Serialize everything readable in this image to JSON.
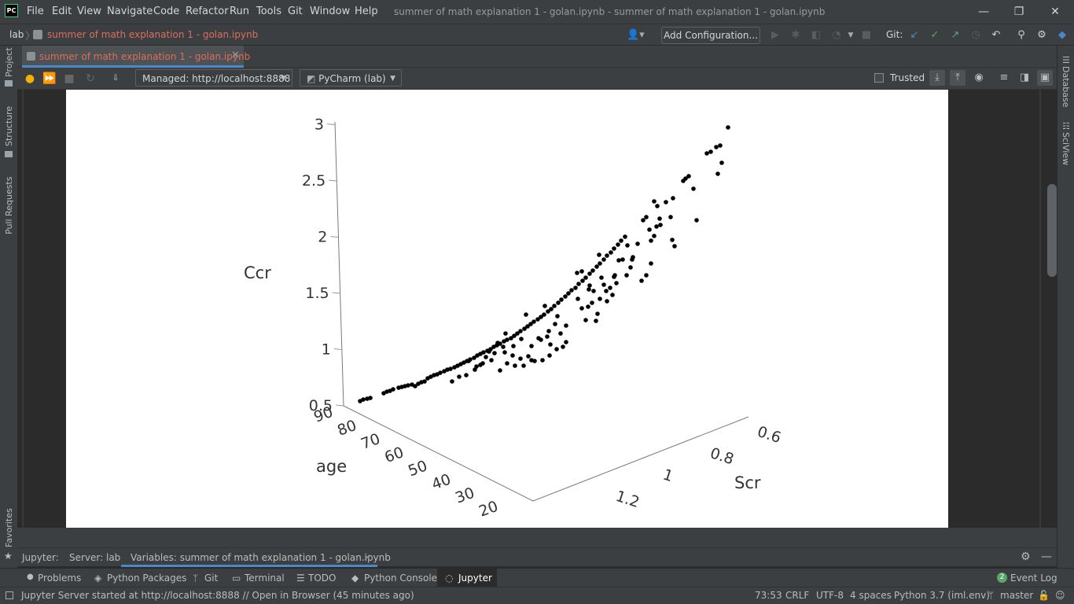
{
  "titlebar": {
    "logo_text": "PC",
    "menu": [
      "File",
      "Edit",
      "View",
      "Navigate",
      "Code",
      "Refactor",
      "Run",
      "Tools",
      "Git",
      "Window",
      "Help"
    ],
    "window_title": "summer of math explanation 1 - golan.ipynb - summer of math explanation 1 - golan.ipynb",
    "controls": {
      "minimize": "—",
      "restore": "❐",
      "close": "✕"
    }
  },
  "navbar": {
    "project": "lab",
    "separator": "〉",
    "file": "summer of math explanation 1 - golan.ipynb",
    "add_configuration": "Add Configuration...",
    "git_label": "Git:"
  },
  "left_strip": {
    "project": "Project",
    "structure": "Structure",
    "pull_requests": "Pull Requests",
    "favorites": "Favorites"
  },
  "right_strip": {
    "database": "Database",
    "sciview": "SciView"
  },
  "editor_tab": {
    "label": "summer of math explanation 1 - golan.ipynb",
    "close": "✕"
  },
  "notebook_toolbar": {
    "server": "Managed: http://localhost:8888",
    "kernel": "PyCharm (lab)",
    "trusted": "Trusted",
    "trusted_checked": false
  },
  "chart_data": {
    "type": "scatter3d",
    "title": "",
    "axes": {
      "z": {
        "label": "Ccr",
        "ticks": [
          "0.5",
          "1",
          "1.5",
          "2",
          "2.5",
          "3"
        ]
      },
      "y": {
        "label": "age",
        "ticks": [
          "90",
          "80",
          "70",
          "60",
          "50",
          "40",
          "30",
          "20"
        ]
      },
      "x": {
        "label": "Scr",
        "ticks": [
          "0.6",
          "0.8",
          "1",
          "1.2"
        ]
      }
    },
    "marker_color": "#000000",
    "points_screen_estimate": [
      [
        458,
        510
      ],
      [
        462,
        508
      ],
      [
        467,
        507
      ],
      [
        471,
        506
      ],
      [
        488,
        500
      ],
      [
        492,
        498
      ],
      [
        496,
        497
      ],
      [
        500,
        495
      ],
      [
        507,
        493
      ],
      [
        511,
        492
      ],
      [
        515,
        491
      ],
      [
        519,
        490
      ],
      [
        524,
        489
      ],
      [
        528,
        491
      ],
      [
        532,
        488
      ],
      [
        536,
        486
      ],
      [
        540,
        485
      ],
      [
        544,
        481
      ],
      [
        548,
        479
      ],
      [
        552,
        477
      ],
      [
        556,
        476
      ],
      [
        560,
        474
      ],
      [
        565,
        472
      ],
      [
        569,
        470
      ],
      [
        573,
        469
      ],
      [
        578,
        467
      ],
      [
        582,
        465
      ],
      [
        586,
        463
      ],
      [
        590,
        461
      ],
      [
        594,
        459
      ],
      [
        598,
        457
      ],
      [
        603,
        455
      ],
      [
        607,
        452
      ],
      [
        611,
        450
      ],
      [
        615,
        448
      ],
      [
        620,
        446
      ],
      [
        624,
        444
      ],
      [
        628,
        441
      ],
      [
        632,
        439
      ],
      [
        636,
        437
      ],
      [
        641,
        434
      ],
      [
        645,
        432
      ],
      [
        650,
        430
      ],
      [
        654,
        427
      ],
      [
        658,
        424
      ],
      [
        662,
        421
      ],
      [
        667,
        418
      ],
      [
        671,
        415
      ],
      [
        675,
        412
      ],
      [
        679,
        409
      ],
      [
        684,
        406
      ],
      [
        688,
        403
      ],
      [
        692,
        400
      ],
      [
        697,
        396
      ],
      [
        701,
        393
      ],
      [
        705,
        389
      ],
      [
        710,
        385
      ],
      [
        714,
        381
      ],
      [
        719,
        377
      ],
      [
        723,
        373
      ],
      [
        727,
        369
      ],
      [
        732,
        366
      ],
      [
        736,
        361
      ],
      [
        741,
        357
      ],
      [
        745,
        353
      ],
      [
        750,
        348
      ],
      [
        754,
        344
      ],
      [
        759,
        339
      ],
      [
        763,
        335
      ],
      [
        768,
        330
      ],
      [
        772,
        325
      ],
      [
        777,
        321
      ],
      [
        781,
        316
      ],
      [
        786,
        311
      ],
      [
        790,
        306
      ],
      [
        795,
        301
      ],
      [
        818,
        280
      ],
      [
        822,
        276
      ],
      [
        832,
        256
      ],
      [
        836,
        262
      ],
      [
        847,
        257
      ],
      [
        853,
        276
      ],
      [
        856,
        252
      ],
      [
        869,
        230
      ],
      [
        872,
        227
      ],
      [
        876,
        224
      ],
      [
        882,
        240
      ],
      [
        886,
        280
      ],
      [
        899,
        195
      ],
      [
        904,
        193
      ],
      [
        911,
        187
      ],
      [
        916,
        185
      ],
      [
        918,
        207
      ],
      [
        926,
        162
      ],
      [
        913,
        221
      ],
      [
        575,
        485
      ],
      [
        584,
        479
      ],
      [
        593,
        477
      ],
      [
        604,
        470
      ],
      [
        614,
        462
      ],
      [
        625,
        458
      ],
      [
        636,
        471
      ],
      [
        645,
        462
      ],
      [
        655,
        465
      ],
      [
        666,
        465
      ],
      [
        676,
        458
      ],
      [
        690,
        458
      ],
      [
        699,
        452
      ],
      [
        708,
        444
      ],
      [
        716,
        441
      ],
      [
        720,
        435
      ],
      [
        652,
        452
      ],
      [
        662,
        456
      ],
      [
        672,
        453
      ],
      [
        685,
        430
      ],
      [
        696,
        428
      ],
      [
        709,
        402
      ],
      [
        720,
        414
      ],
      [
        745,
        407
      ],
      [
        758,
        408
      ],
      [
        763,
        380
      ],
      [
        772,
        383
      ],
      [
        784,
        360
      ],
      [
        797,
        350
      ],
      [
        802,
        340
      ],
      [
        816,
        357
      ],
      [
        822,
        350
      ],
      [
        828,
        335
      ],
      [
        828,
        306
      ],
      [
        832,
        300
      ],
      [
        858,
        313
      ],
      [
        855,
        305
      ],
      [
        835,
        288
      ],
      [
        839,
        278
      ],
      [
        748,
        390
      ],
      [
        760,
        399
      ],
      [
        771,
        370
      ],
      [
        781,
        352
      ],
      [
        792,
        330
      ],
      [
        805,
        327
      ],
      [
        811,
        310
      ],
      [
        826,
        292
      ],
      [
        840,
        286
      ],
      [
        735,
        380
      ],
      [
        740,
        392
      ],
      [
        749,
        368
      ],
      [
        753,
        385
      ],
      [
        765,
        353
      ],
      [
        776,
        366
      ],
      [
        782,
        350
      ],
      [
        642,
        448
      ],
      [
        653,
        440
      ],
      [
        663,
        431
      ],
      [
        676,
        440
      ],
      [
        688,
        432
      ],
      [
        698,
        421
      ],
      [
        706,
        412
      ],
      [
        713,
        424
      ],
      [
        596,
        459
      ],
      [
        606,
        466
      ],
      [
        618,
        454
      ],
      [
        629,
        449
      ],
      [
        640,
        441
      ],
      [
        680,
        459
      ],
      [
        700,
        438
      ],
      [
        734,
        347
      ],
      [
        740,
        345
      ],
      [
        750,
        363
      ],
      [
        755,
        370
      ],
      [
        762,
        324
      ],
      [
        768,
        362
      ],
      [
        779,
        375
      ],
      [
        787,
        331
      ],
      [
        798,
        312
      ],
      [
        804,
        330
      ],
      [
        611,
        464
      ],
      [
        622,
        447
      ],
      [
        633,
        436
      ],
      [
        643,
        424
      ],
      [
        669,
        400
      ],
      [
        693,
        389
      ]
    ]
  },
  "jupyter_bar": {
    "jupyter": "Jupyter:",
    "server": "Server: lab",
    "variables": "Variables: summer of math explanation 1 - golan.ipynb",
    "close": "✕"
  },
  "bottom_tabs": {
    "problems": "Problems",
    "python_packages": "Python Packages",
    "git": "Git",
    "terminal": "Terminal",
    "todo": "TODO",
    "python_console": "Python Console",
    "jupyter": "Jupyter",
    "event_log_count": "2",
    "event_log": "Event Log"
  },
  "status_bar": {
    "message": "Jupyter Server started at http://localhost:8888 // Open in Browser (45 minutes ago)",
    "position": "73:53",
    "line_sep": "CRLF",
    "encoding": "UTF-8",
    "indent": "4 spaces",
    "interpreter": "Python 3.7 (iml.env)",
    "branch": "master"
  }
}
